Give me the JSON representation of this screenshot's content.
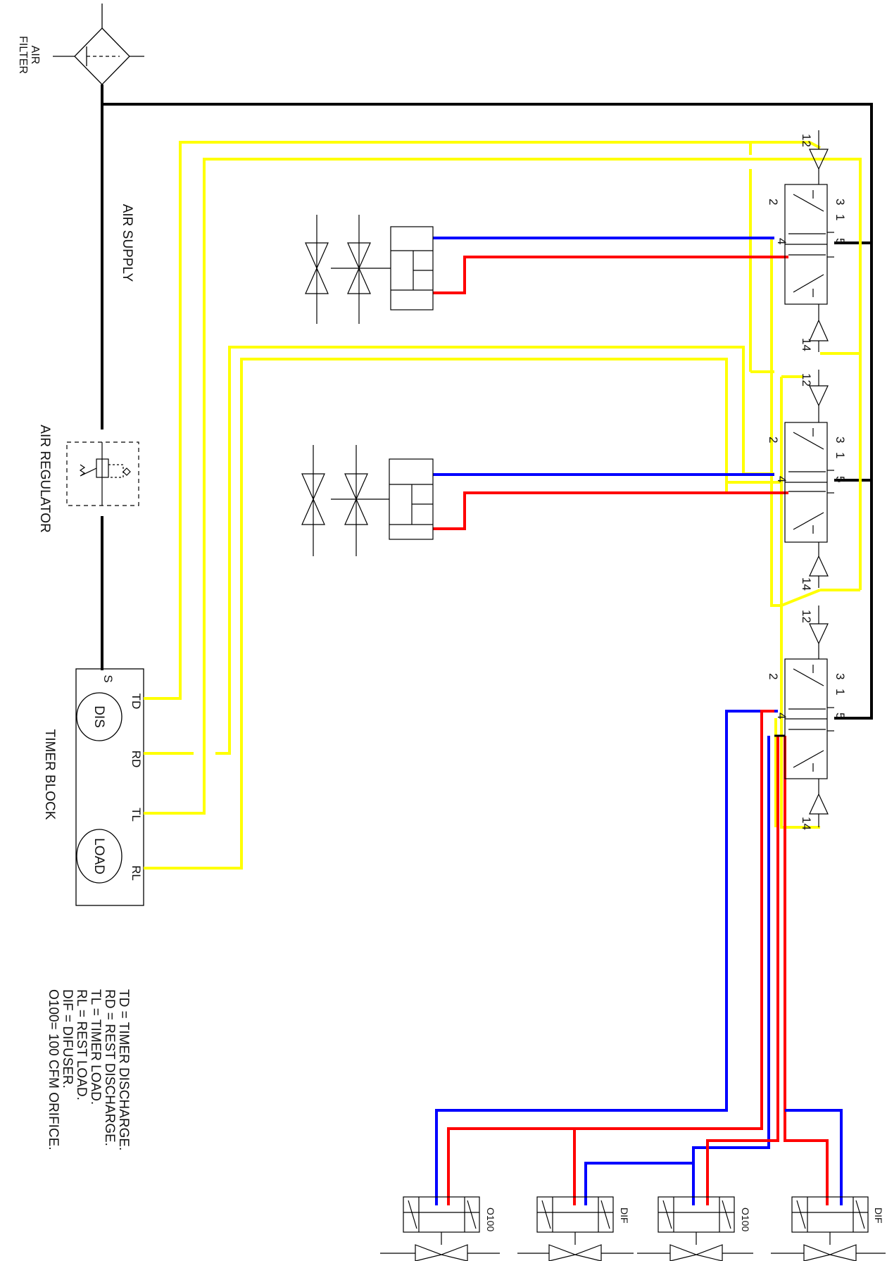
{
  "labels": {
    "air_filter": [
      "AIR",
      "FILTER"
    ],
    "air_supply": "AIR SUPPLY",
    "air_regulator": "AIR REGULATOR",
    "timer_block": "TIMER BLOCK",
    "port_s": "S",
    "port_td": "TD",
    "port_rd": "RD",
    "port_tl": "TL",
    "port_rl": "RL",
    "dis": "DIS",
    "load": "LOAD"
  },
  "valve_ports": {
    "p12": "12",
    "p14": "14",
    "p3": "3",
    "p1": "1",
    "p5": "5",
    "p2": "2",
    "p4": "4"
  },
  "bottom_valves": [
    "O100",
    "DIF",
    "O100",
    "DIF"
  ],
  "legend": [
    "TD = TIMER DISCHARGE.",
    "RD = REST DISCHARGE.",
    "TL = TIMER LOAD.",
    "RL = REST LOAD.",
    "DIF = DIFUSER.",
    "O100= 100 CFM ORIFICE."
  ],
  "colors": {
    "air_line": "#000000",
    "pilot_line": "#ffff00",
    "blue_line": "#0000ff",
    "red_line": "#ff0000"
  }
}
